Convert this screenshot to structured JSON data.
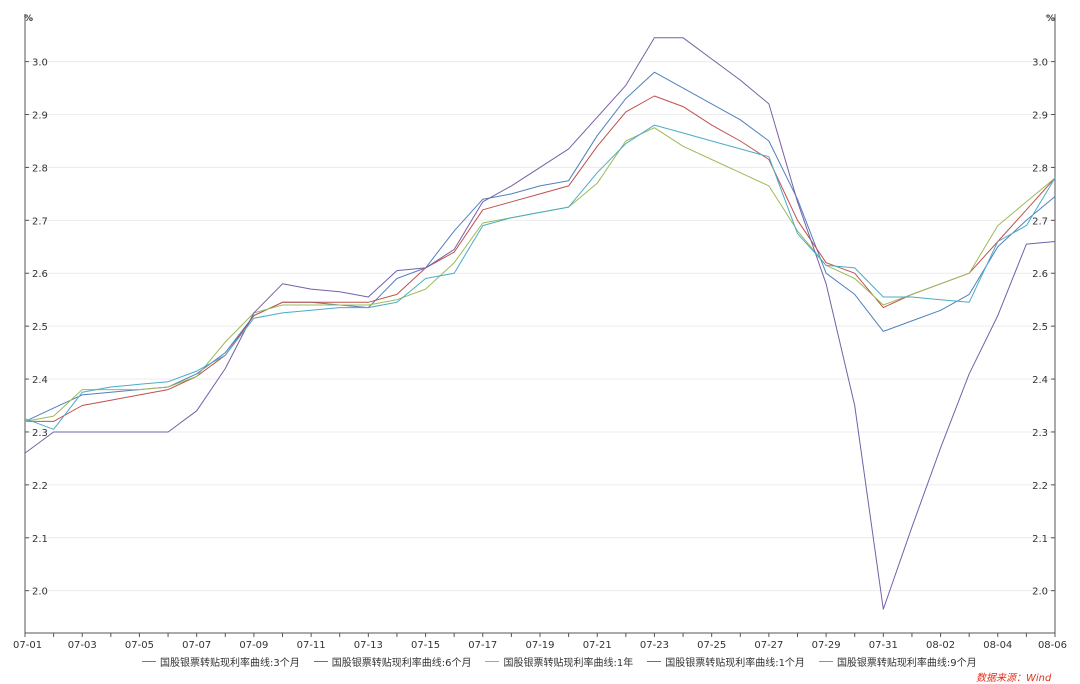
{
  "chart_data": {
    "type": "line",
    "unit_left": "%",
    "unit_right": "%",
    "x": [
      "07-01",
      "07-02",
      "07-03",
      "07-04",
      "07-05",
      "07-06",
      "07-07",
      "07-08",
      "07-09",
      "07-10",
      "07-11",
      "07-12",
      "07-13",
      "07-14",
      "07-15",
      "07-16",
      "07-17",
      "07-18",
      "07-19",
      "07-20",
      "07-21",
      "07-22",
      "07-23",
      "07-24",
      "07-25",
      "07-26",
      "07-27",
      "07-28",
      "07-29",
      "07-30",
      "07-31",
      "08-01",
      "08-02",
      "08-03",
      "08-04",
      "08-05",
      "08-06"
    ],
    "x_ticks": [
      "07-01",
      "07-03",
      "07-05",
      "07-07",
      "07-09",
      "07-11",
      "07-13",
      "07-15",
      "07-17",
      "07-19",
      "07-21",
      "07-23",
      "07-25",
      "07-27",
      "07-29",
      "07-31",
      "08-02",
      "08-04",
      "08-06"
    ],
    "y_ticks": [
      2.0,
      2.1,
      2.2,
      2.3,
      2.4,
      2.5,
      2.6,
      2.7,
      2.8,
      2.9,
      3.0
    ],
    "ylim": [
      1.92,
      3.09
    ],
    "series": [
      {
        "name": "国股银票转贴现利率曲线:3个月",
        "color": "#4f81bd",
        "values": [
          2.32,
          2.345,
          2.37,
          2.375,
          2.38,
          2.385,
          2.41,
          2.45,
          2.52,
          2.545,
          2.545,
          2.54,
          2.535,
          2.59,
          2.61,
          2.68,
          2.74,
          2.75,
          2.765,
          2.775,
          2.86,
          2.93,
          2.98,
          2.95,
          2.92,
          2.89,
          2.85,
          2.74,
          2.6,
          2.56,
          2.49,
          2.51,
          2.53,
          2.56,
          2.65,
          2.7,
          2.745
        ]
      },
      {
        "name": "国股银票转贴现利率曲线:6个月",
        "color": "#c0504d",
        "values": [
          2.32,
          2.32,
          2.35,
          2.36,
          2.37,
          2.38,
          2.405,
          2.445,
          2.52,
          2.545,
          2.545,
          2.545,
          2.545,
          2.56,
          2.61,
          2.64,
          2.72,
          2.735,
          2.75,
          2.765,
          2.84,
          2.905,
          2.935,
          2.915,
          2.88,
          2.85,
          2.815,
          2.7,
          2.62,
          2.6,
          2.535,
          2.56,
          2.58,
          2.6,
          2.66,
          2.72,
          2.78
        ]
      },
      {
        "name": "国股银票转贴现利率曲线:1年",
        "color": "#9bbb59",
        "values": [
          2.32,
          2.33,
          2.38,
          2.38,
          2.38,
          2.385,
          2.405,
          2.47,
          2.525,
          2.54,
          2.54,
          2.54,
          2.54,
          2.55,
          2.57,
          2.62,
          2.695,
          2.705,
          2.715,
          2.725,
          2.77,
          2.85,
          2.875,
          2.84,
          2.815,
          2.79,
          2.765,
          2.68,
          2.615,
          2.59,
          2.54,
          2.56,
          2.58,
          2.6,
          2.69,
          2.735,
          2.78
        ]
      },
      {
        "name": "国股银票转贴现利率曲线:1个月",
        "color": "#7660a6",
        "values": [
          2.26,
          2.3,
          2.3,
          2.3,
          2.3,
          2.3,
          2.34,
          2.42,
          2.525,
          2.58,
          2.57,
          2.565,
          2.555,
          2.605,
          2.61,
          2.645,
          2.735,
          2.765,
          2.8,
          2.835,
          2.895,
          2.955,
          3.045,
          3.045,
          3.005,
          2.965,
          2.92,
          2.735,
          2.58,
          2.35,
          1.965,
          2.12,
          2.27,
          2.41,
          2.52,
          2.655,
          2.66
        ]
      },
      {
        "name": "国股银票转贴现利率曲线:9个月",
        "color": "#4bacc6",
        "values": [
          2.325,
          2.305,
          2.375,
          2.385,
          2.39,
          2.395,
          2.415,
          2.445,
          2.515,
          2.525,
          2.53,
          2.535,
          2.535,
          2.545,
          2.59,
          2.6,
          2.69,
          2.705,
          2.715,
          2.725,
          2.79,
          2.845,
          2.88,
          2.865,
          2.85,
          2.835,
          2.82,
          2.675,
          2.615,
          2.61,
          2.555,
          2.555,
          2.55,
          2.545,
          2.66,
          2.69,
          2.78
        ]
      }
    ]
  },
  "source_label": "数据来源：Wind"
}
